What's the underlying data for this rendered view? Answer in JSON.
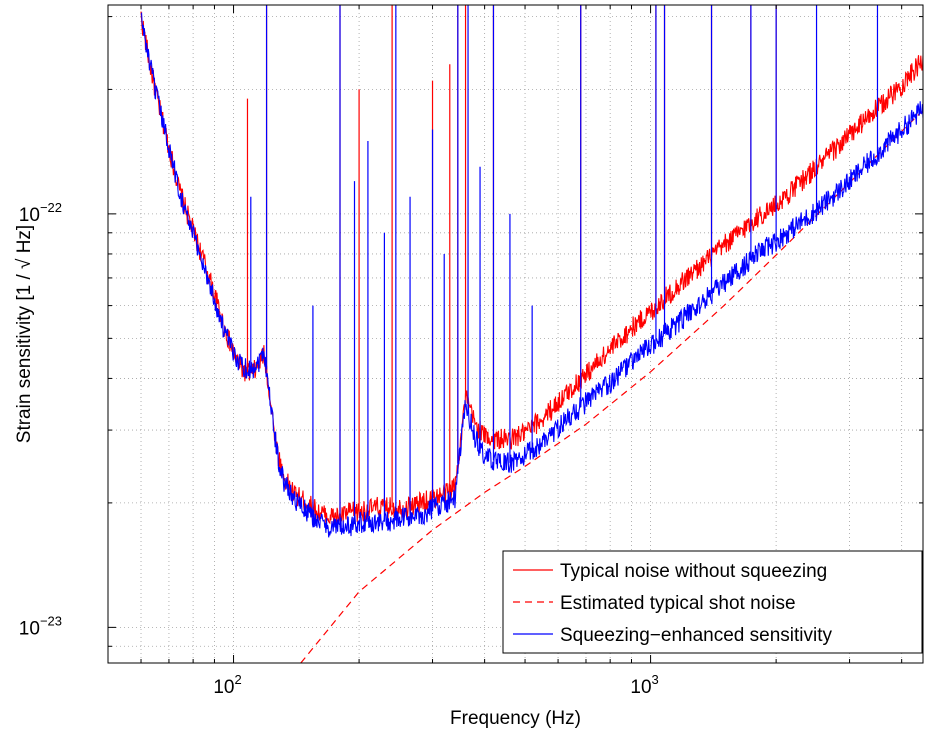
{
  "chart_data": {
    "type": "line",
    "xlabel": "Frequency (Hz)",
    "ylabel": "Strain sensitivity [1 / √ Hz]",
    "xscale": "log",
    "yscale": "log",
    "xlim": [
      50,
      4500
    ],
    "ylim": [
      8.2e-24,
      3.2e-22
    ],
    "x_tick_labels": [
      {
        "value": 100,
        "base": "10",
        "exp": "2"
      },
      {
        "value": 1000,
        "base": "10",
        "exp": "3"
      }
    ],
    "y_tick_labels": [
      {
        "value": 1e-23,
        "base": "10",
        "exp": "−23"
      },
      {
        "value": 1e-22,
        "base": "10",
        "exp": "−22"
      }
    ],
    "grid": true,
    "legend_position": "bottom-right",
    "series": [
      {
        "name": "Typical noise without squeezing",
        "color": "#ff0000",
        "style": "solid",
        "x": [
          60,
          63,
          66,
          70,
          74,
          78,
          82,
          86,
          90,
          95,
          100,
          105,
          110,
          115,
          118,
          120,
          124,
          128,
          132,
          140,
          150,
          160,
          170,
          180,
          190,
          200,
          220,
          240,
          260,
          280,
          300,
          320,
          340,
          360,
          380,
          400,
          430,
          460,
          500,
          550,
          600,
          700,
          800,
          900,
          1000,
          1200,
          1500,
          1800,
          2000,
          2500,
          3000,
          3500,
          4000,
          4500
        ],
        "y": [
          3e-22,
          2.3e-22,
          1.85e-22,
          1.45e-22,
          1.15e-22,
          9.8e-23,
          8.5e-23,
          7.4e-23,
          6.4e-23,
          5.3e-23,
          4.6e-23,
          4.2e-23,
          4.1e-23,
          4.3e-23,
          4.6e-23,
          4.2e-23,
          3.2e-23,
          2.6e-23,
          2.3e-23,
          2.1e-23,
          2e-23,
          1.9e-23,
          1.85e-23,
          1.85e-23,
          1.9e-23,
          1.9e-23,
          1.95e-23,
          1.95e-23,
          1.95e-23,
          2e-23,
          2.05e-23,
          2.1e-23,
          2.2e-23,
          3.6e-23,
          3.1e-23,
          2.9e-23,
          2.85e-23,
          2.85e-23,
          2.95e-23,
          3.2e-23,
          3.5e-23,
          4.1e-23,
          4.7e-23,
          5.3e-23,
          5.8e-23,
          6.9e-23,
          8.4e-23,
          9.8e-23,
          1.05e-22,
          1.3e-22,
          1.55e-22,
          1.8e-22,
          2.05e-22,
          2.35e-22
        ]
      },
      {
        "name": "Estimated typical shot noise",
        "color": "#ff0000",
        "style": "dashed",
        "x": [
          145,
          200,
          300,
          400,
          500,
          700,
          1000,
          1500,
          2000,
          3000,
          4500
        ],
        "y": [
          8.2e-24,
          1.22e-23,
          1.72e-23,
          2.12e-23,
          2.45e-23,
          3.1e-23,
          4.15e-23,
          6e-23,
          7.95e-23,
          1.19e-22,
          1.78e-22
        ]
      },
      {
        "name": "Squeezing−enhanced sensitivity",
        "color": "#0000ff",
        "style": "solid",
        "x": [
          60,
          63,
          66,
          70,
          74,
          78,
          82,
          86,
          90,
          95,
          100,
          105,
          110,
          115,
          118,
          120,
          124,
          128,
          132,
          140,
          150,
          160,
          170,
          180,
          190,
          200,
          220,
          240,
          260,
          280,
          300,
          320,
          340,
          360,
          380,
          400,
          430,
          460,
          500,
          550,
          600,
          700,
          800,
          900,
          1000,
          1200,
          1500,
          1800,
          2000,
          2500,
          3000,
          3500,
          4000,
          4500
        ],
        "y": [
          3e-22,
          2.3e-22,
          1.85e-22,
          1.45e-22,
          1.15e-22,
          9.6e-23,
          8.3e-23,
          7.2e-23,
          6.2e-23,
          5.2e-23,
          4.6e-23,
          4.3e-23,
          4.2e-23,
          4.4e-23,
          4.7e-23,
          4.2e-23,
          3.2e-23,
          2.55e-23,
          2.25e-23,
          2.05e-23,
          1.9e-23,
          1.8e-23,
          1.75e-23,
          1.75e-23,
          1.75e-23,
          1.8e-23,
          1.8e-23,
          1.8e-23,
          1.85e-23,
          1.85e-23,
          1.95e-23,
          2e-23,
          2.05e-23,
          3.5e-23,
          2.85e-23,
          2.6e-23,
          2.5e-23,
          2.5e-23,
          2.6e-23,
          2.8e-23,
          3.05e-23,
          3.5e-23,
          3.9e-23,
          4.4e-23,
          4.8e-23,
          5.6e-23,
          6.8e-23,
          8e-23,
          8.6e-23,
          1.02e-22,
          1.2e-22,
          1.4e-22,
          1.6e-22,
          1.8e-22
        ]
      }
    ],
    "spikes": {
      "red": [
        {
          "f": 108,
          "peak": 1.9e-22
        },
        {
          "f": 120,
          "peak": 3.2e-22
        },
        {
          "f": 180,
          "peak": 3.2e-22
        },
        {
          "f": 200,
          "peak": 2e-22
        },
        {
          "f": 240,
          "peak": 3.2e-22
        },
        {
          "f": 300,
          "peak": 2.1e-22
        },
        {
          "f": 330,
          "peak": 2.3e-22
        },
        {
          "f": 345,
          "peak": 3.2e-22
        },
        {
          "f": 360,
          "peak": 3.2e-22
        },
        {
          "f": 420,
          "peak": 3.2e-22
        },
        {
          "f": 680,
          "peak": 3.2e-22
        },
        {
          "f": 1030,
          "peak": 3.2e-22
        },
        {
          "f": 1080,
          "peak": 3.2e-22
        },
        {
          "f": 1400,
          "peak": 3.2e-22
        },
        {
          "f": 1740,
          "peak": 3.2e-22
        },
        {
          "f": 2000,
          "peak": 3.2e-22
        }
      ],
      "blue": [
        {
          "f": 110,
          "peak": 1.1e-22
        },
        {
          "f": 120,
          "peak": 3.2e-22
        },
        {
          "f": 155,
          "peak": 6e-23
        },
        {
          "f": 180,
          "peak": 3.2e-22
        },
        {
          "f": 195,
          "peak": 1.2e-22
        },
        {
          "f": 210,
          "peak": 1.5e-22
        },
        {
          "f": 230,
          "peak": 9e-23
        },
        {
          "f": 245,
          "peak": 3.2e-22
        },
        {
          "f": 265,
          "peak": 1.1e-22
        },
        {
          "f": 300,
          "peak": 1.6e-22
        },
        {
          "f": 320,
          "peak": 8e-23
        },
        {
          "f": 345,
          "peak": 3.2e-22
        },
        {
          "f": 365,
          "peak": 3.2e-22
        },
        {
          "f": 390,
          "peak": 1.3e-22
        },
        {
          "f": 420,
          "peak": 3.2e-22
        },
        {
          "f": 460,
          "peak": 1e-22
        },
        {
          "f": 520,
          "peak": 6e-23
        },
        {
          "f": 680,
          "peak": 3.2e-22
        },
        {
          "f": 1030,
          "peak": 3.2e-22
        },
        {
          "f": 1080,
          "peak": 3.2e-22
        },
        {
          "f": 1400,
          "peak": 3.2e-22
        },
        {
          "f": 1740,
          "peak": 3.2e-22
        },
        {
          "f": 2000,
          "peak": 3.2e-22
        },
        {
          "f": 2500,
          "peak": 3.2e-22
        },
        {
          "f": 3500,
          "peak": 3.2e-22
        }
      ]
    }
  }
}
